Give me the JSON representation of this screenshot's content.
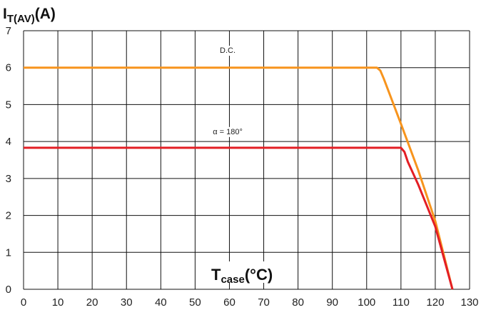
{
  "chart_data": {
    "type": "line",
    "ylabel": {
      "main": "I",
      "sub": "T(AV)",
      "unit": "(A)"
    },
    "xlabel": {
      "main": "T",
      "sub": "case",
      "unit": "(°C)"
    },
    "xlim": [
      0,
      130
    ],
    "ylim": [
      0,
      7
    ],
    "xticks": [
      "0",
      "10",
      "20",
      "30",
      "40",
      "50",
      "60",
      "70",
      "80",
      "90",
      "100",
      "110",
      "120",
      "130"
    ],
    "yticks": [
      "0",
      "1",
      "2",
      "3",
      "4",
      "5",
      "6",
      "7"
    ],
    "grid": true,
    "series": [
      {
        "name": "D.C.",
        "color": "#f7941d",
        "points": [
          [
            0,
            6.0
          ],
          [
            103,
            6.0
          ],
          [
            104,
            5.92
          ],
          [
            105,
            5.7
          ],
          [
            110,
            4.48
          ],
          [
            115,
            3.23
          ],
          [
            120,
            1.85
          ],
          [
            125,
            0.0
          ]
        ]
      },
      {
        "name": "α = 180°",
        "color": "#e31e24",
        "points": [
          [
            0,
            3.83
          ],
          [
            110,
            3.83
          ],
          [
            111,
            3.72
          ],
          [
            112,
            3.45
          ],
          [
            115,
            2.84
          ],
          [
            120,
            1.7
          ],
          [
            125,
            0.0
          ]
        ]
      }
    ],
    "annotations": [
      {
        "text": "D.C.",
        "x": 59.5,
        "y": 6.4
      },
      {
        "text": "α = 180°",
        "x": 59.5,
        "y": 4.2
      }
    ]
  }
}
